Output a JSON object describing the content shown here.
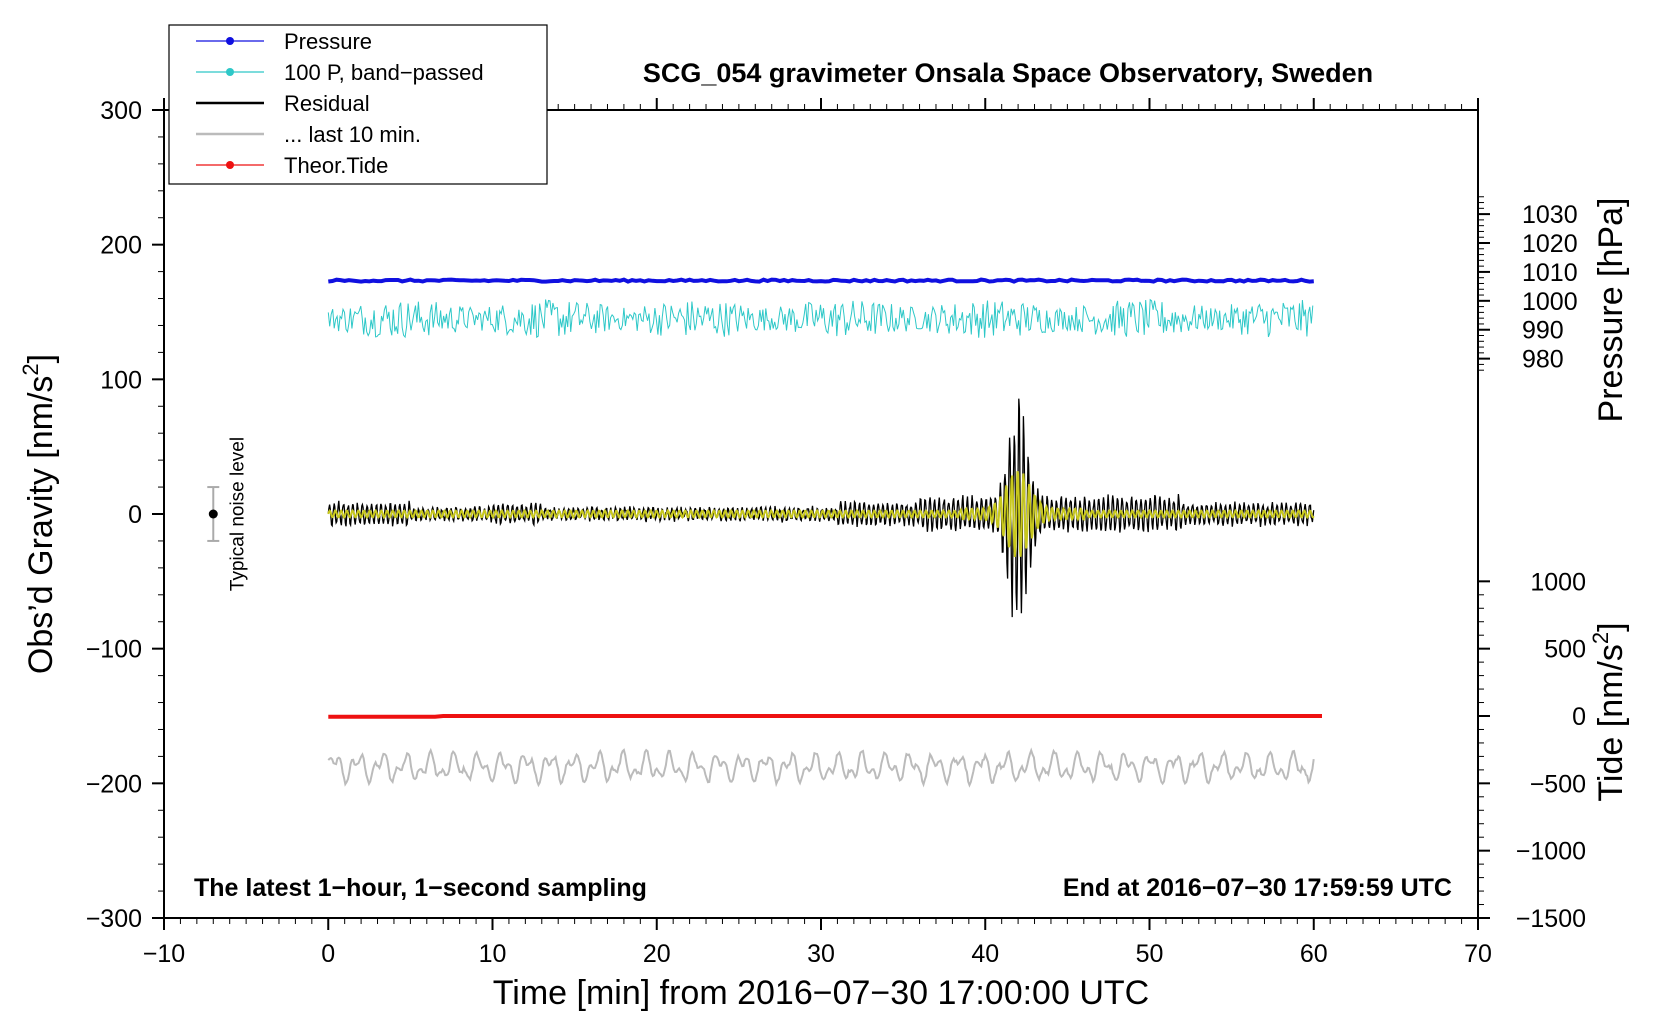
{
  "chart_data": {
    "type": "line",
    "title": "SCG_054 gravimeter Onsala Space Observatory, Sweden",
    "xlabel": "Time [min] from 2016−07−30 17:00:00 UTC",
    "ylabel_left": "Obs’d Gravity [nm/s²]",
    "ylabel_left_main": "Obs’d Gravity [nm/s",
    "ylabel_left_sup": "2",
    "ylabel_left_end": "]",
    "ylabel_right_top": "Pressure [hPa]",
    "ylabel_right_bottom": "Tide [nm/s²]",
    "ylabel_right_bottom_main": "Tide [nm/s",
    "ylabel_right_bottom_sup": "2",
    "ylabel_right_bottom_end": "]",
    "xlim": [
      -10,
      70
    ],
    "ylim_left": [
      -300,
      300
    ],
    "x_ticks": [
      {
        "value": -10,
        "label": "−10"
      },
      {
        "value": 0,
        "label": "0"
      },
      {
        "value": 10,
        "label": "10"
      },
      {
        "value": 20,
        "label": "20"
      },
      {
        "value": 30,
        "label": "30"
      },
      {
        "value": 40,
        "label": "40"
      },
      {
        "value": 50,
        "label": "50"
      },
      {
        "value": 60,
        "label": "60"
      },
      {
        "value": 70,
        "label": "70"
      }
    ],
    "y_left_ticks": [
      {
        "value": 300,
        "label": "300"
      },
      {
        "value": 200,
        "label": "200"
      },
      {
        "value": 100,
        "label": "100"
      },
      {
        "value": 0,
        "label": "0"
      },
      {
        "value": -100,
        "label": "−100"
      },
      {
        "value": -200,
        "label": "−200"
      },
      {
        "value": -300,
        "label": "−300"
      }
    ],
    "pressure_axis": {
      "offset_gravity": 158.3,
      "offset_pressure": 1000,
      "scale": 0.4659,
      "ticks": [
        {
          "value": 1030,
          "label": "1030"
        },
        {
          "value": 1020,
          "label": "1020"
        },
        {
          "value": 1010,
          "label": "1010"
        },
        {
          "value": 1000,
          "label": "1000"
        },
        {
          "value": 990,
          "label": "990"
        },
        {
          "value": 980,
          "label": "980"
        }
      ]
    },
    "tide_axis": {
      "offset_gravity": -150,
      "scale": 0.1,
      "ticks": [
        {
          "value": 1000,
          "label": "1000"
        },
        {
          "value": 500,
          "label": "500"
        },
        {
          "value": 0,
          "label": "0"
        },
        {
          "value": -500,
          "label": "−500"
        },
        {
          "value": -1000,
          "label": "−1000"
        },
        {
          "value": -1500,
          "label": "−1500"
        }
      ]
    },
    "series": [
      {
        "name": "Pressure",
        "color": "#1010e0",
        "unit": "hPa",
        "x_range": [
          0,
          60
        ],
        "approx_value_hPa": 1007,
        "marker": "dot"
      },
      {
        "name": "100 P, band−passed",
        "color": "#2ec8c8",
        "unit": "nm/s²",
        "x_range": [
          0,
          60
        ],
        "approx_center": 145,
        "approx_amplitude": 12
      },
      {
        "name": "Residual",
        "color": "#000000",
        "unit": "nm/s²",
        "x_range": [
          0,
          60
        ],
        "approx_center": 0,
        "notable_peak": {
          "x": 42,
          "max": 103,
          "min": -105
        }
      },
      {
        "name": "... last 10 min.",
        "color": "#bbbbbb",
        "unit": "nm/s²",
        "x_range": [
          0,
          60
        ],
        "approx_center": -188,
        "approx_amplitude": 10
      },
      {
        "name": "Theor.Tide",
        "color": "#ee1111",
        "unit": "nm/s²",
        "x_range": [
          0,
          60.5
        ],
        "approx_value_tide": 0,
        "marker": "dot"
      },
      {
        "name": "filtered",
        "color": "#c8c81e",
        "in_legend": false,
        "unit": "nm/s²",
        "x_range": [
          0,
          60
        ],
        "approx_center": 0,
        "notable_peak": {
          "x": 42,
          "max": 32,
          "min": -32
        }
      }
    ],
    "legend": {
      "placement": "top-left",
      "entries": [
        {
          "label": "Pressure",
          "color": "#1010e0",
          "marker": true
        },
        {
          "label": "100 P, band−passed",
          "color": "#2ec8c8",
          "marker": true
        },
        {
          "label": "Residual",
          "color": "#000000",
          "marker": false
        },
        {
          "label": "... last 10 min.",
          "color": "#bbbbbb",
          "marker": false
        },
        {
          "label": "Theor.Tide",
          "color": "#ee1111",
          "marker": true
        }
      ]
    },
    "noise_indicator": {
      "label": "Typical noise level",
      "x": -7,
      "y": 0,
      "half_range": 20
    },
    "annotations": {
      "bottom_left": "The latest 1−hour, 1−second sampling",
      "bottom_right": "End at 2016−07−30 17:59:59 UTC"
    }
  }
}
